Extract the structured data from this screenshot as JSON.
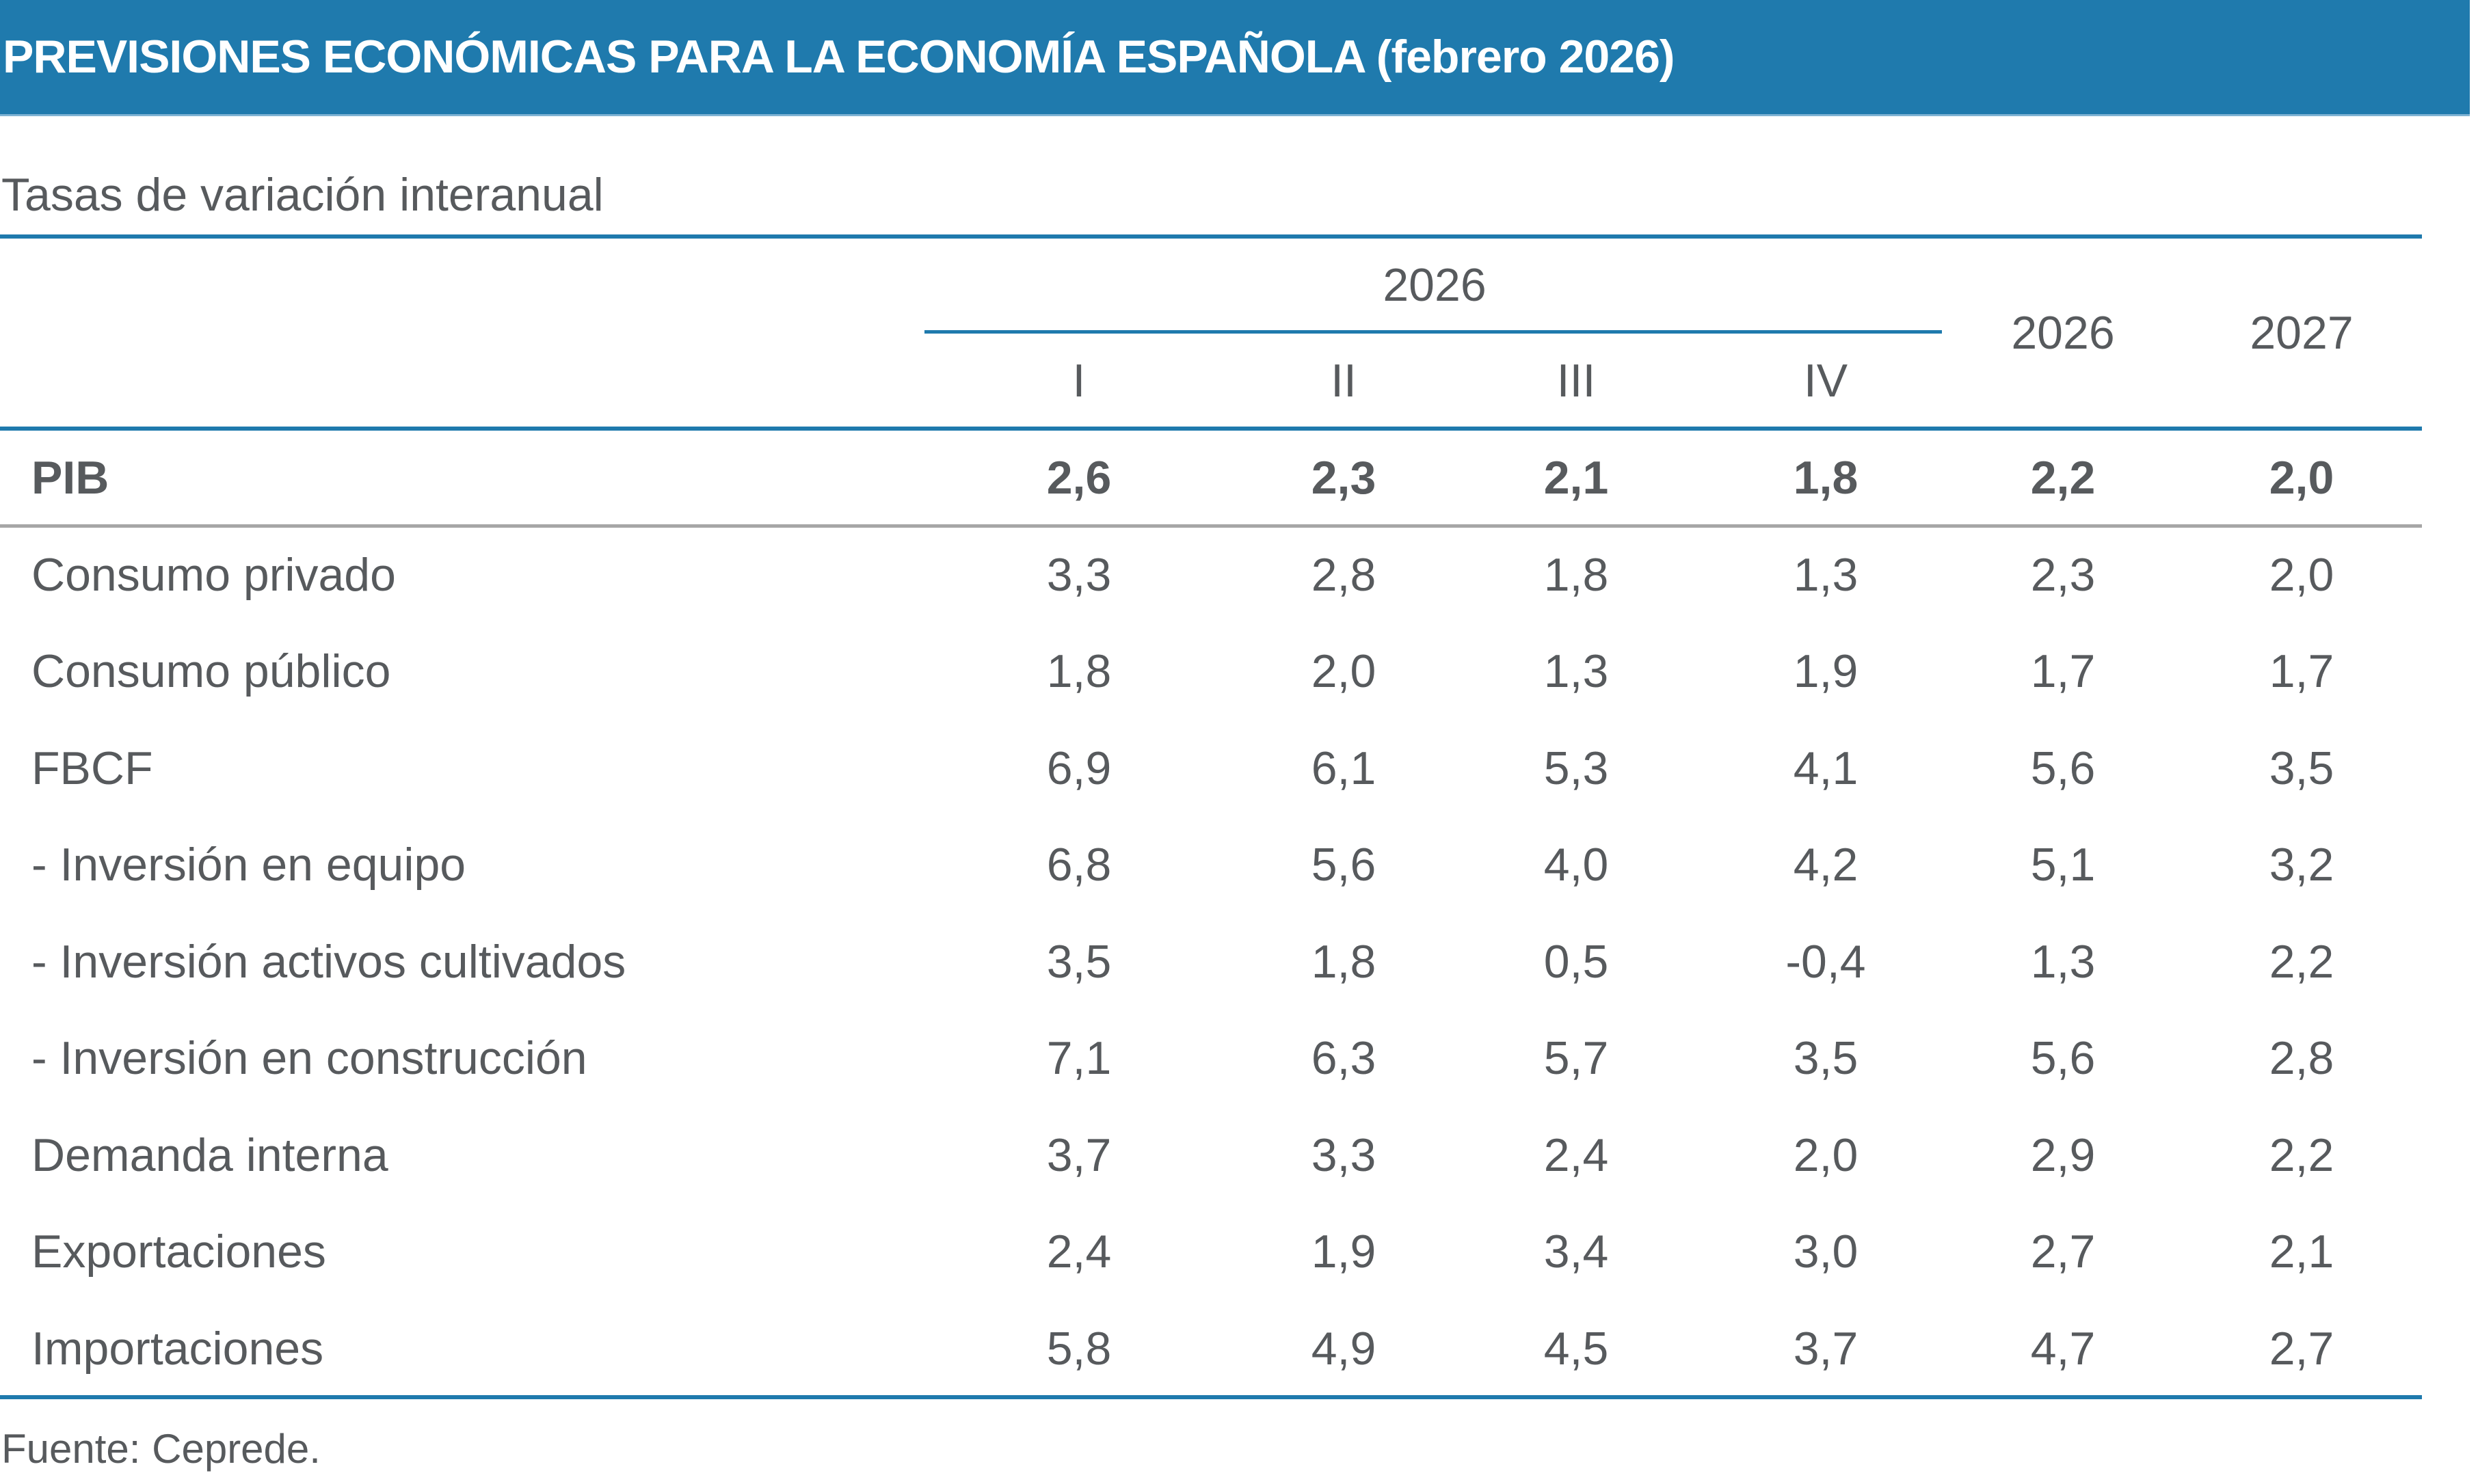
{
  "title": "PREVISIONES ECONÓMICAS PARA LA ECONOMÍA ESPAÑOLA (febrero 2026)",
  "subtitle": "Tasas de variación interanual",
  "colors": {
    "accent": "#1f7aad",
    "text": "#575a5d",
    "separator": "#a6a6a6"
  },
  "table": {
    "group_header": "2026",
    "columns": [
      "I",
      "II",
      "III",
      "IV",
      "2026",
      "2027"
    ],
    "rows": [
      {
        "label": "PIB",
        "bold": true,
        "values": [
          "2,6",
          "2,3",
          "2,1",
          "1,8",
          "2,2",
          "2,0"
        ]
      },
      {
        "label": "Consumo privado",
        "values": [
          "3,3",
          "2,8",
          "1,8",
          "1,3",
          "2,3",
          "2,0"
        ]
      },
      {
        "label": "Consumo público",
        "values": [
          "1,8",
          "2,0",
          "1,3",
          "1,9",
          "1,7",
          "1,7"
        ]
      },
      {
        "label": "FBCF",
        "values": [
          "6,9",
          "6,1",
          "5,3",
          "4,1",
          "5,6",
          "3,5"
        ]
      },
      {
        "label": "- Inversión en equipo",
        "values": [
          "6,8",
          "5,6",
          "4,0",
          "4,2",
          "5,1",
          "3,2"
        ]
      },
      {
        "label": "- Inversión activos cultivados",
        "values": [
          "3,5",
          "1,8",
          "0,5",
          "-0,4",
          "1,3",
          "2,2"
        ]
      },
      {
        "label": "- Inversión en construcción",
        "values": [
          "7,1",
          "6,3",
          "5,7",
          "3,5",
          "5,6",
          "2,8"
        ]
      },
      {
        "label": "Demanda interna",
        "values": [
          "3,7",
          "3,3",
          "2,4",
          "2,0",
          "2,9",
          "2,2"
        ]
      },
      {
        "label": "Exportaciones",
        "values": [
          "2,4",
          "1,9",
          "3,4",
          "3,0",
          "2,7",
          "2,1"
        ]
      },
      {
        "label": "Importaciones",
        "values": [
          "5,8",
          "4,9",
          "4,5",
          "3,7",
          "4,7",
          "2,7"
        ]
      }
    ]
  },
  "footer": "Fuente: Ceprede."
}
